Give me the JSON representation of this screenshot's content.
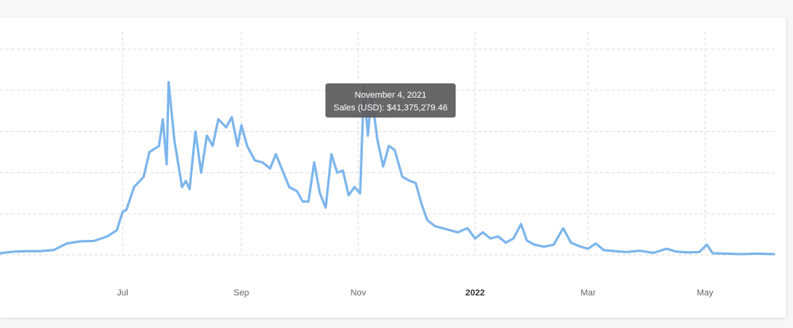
{
  "chart_data": {
    "type": "line",
    "title": "",
    "xlabel": "",
    "ylabel": "",
    "x_tick_labels": [
      {
        "label": "Jul",
        "date": "2021-07-01",
        "bold": false
      },
      {
        "label": "Sep",
        "date": "2021-09-01",
        "bold": false
      },
      {
        "label": "Nov",
        "date": "2021-11-01",
        "bold": false
      },
      {
        "label": "2022",
        "date": "2022-01-01",
        "bold": true
      },
      {
        "label": "Mar",
        "date": "2022-03-01",
        "bold": false
      },
      {
        "label": "May",
        "date": "2022-05-01",
        "bold": false
      }
    ],
    "xlim": [
      "2021-04-28",
      "2022-06-06"
    ],
    "ylim": [
      0,
      50000000
    ],
    "y_gridlines": [
      0,
      10000000,
      20000000,
      30000000,
      40000000,
      50000000
    ],
    "grid": true,
    "series": [
      {
        "color": "#7cb5ec",
        "points": [
          [
            "2021-04-28",
            400000
          ],
          [
            "2021-05-05",
            800000
          ],
          [
            "2021-05-12",
            900000
          ],
          [
            "2021-05-19",
            900000
          ],
          [
            "2021-05-26",
            1200000
          ],
          [
            "2021-06-02",
            2800000
          ],
          [
            "2021-06-09",
            3300000
          ],
          [
            "2021-06-16",
            3400000
          ],
          [
            "2021-06-23",
            4500000
          ],
          [
            "2021-06-28",
            6000000
          ],
          [
            "2021-07-01",
            10500000
          ],
          [
            "2021-07-03",
            11000000
          ],
          [
            "2021-07-07",
            16500000
          ],
          [
            "2021-07-12",
            19000000
          ],
          [
            "2021-07-15",
            25000000
          ],
          [
            "2021-07-20",
            26500000
          ],
          [
            "2021-07-22",
            33000000
          ],
          [
            "2021-07-24",
            22000000
          ],
          [
            "2021-07-25",
            42000000
          ],
          [
            "2021-07-28",
            28000000
          ],
          [
            "2021-08-01",
            16500000
          ],
          [
            "2021-08-03",
            18000000
          ],
          [
            "2021-08-05",
            16000000
          ],
          [
            "2021-08-08",
            30000000
          ],
          [
            "2021-08-11",
            20000000
          ],
          [
            "2021-08-14",
            29000000
          ],
          [
            "2021-08-17",
            26500000
          ],
          [
            "2021-08-20",
            33000000
          ],
          [
            "2021-08-24",
            31000000
          ],
          [
            "2021-08-27",
            33500000
          ],
          [
            "2021-08-30",
            26500000
          ],
          [
            "2021-09-01",
            31500000
          ],
          [
            "2021-09-04",
            26500000
          ],
          [
            "2021-09-08",
            23000000
          ],
          [
            "2021-09-12",
            22500000
          ],
          [
            "2021-09-16",
            21000000
          ],
          [
            "2021-09-19",
            24500000
          ],
          [
            "2021-09-22",
            21000000
          ],
          [
            "2021-09-26",
            16500000
          ],
          [
            "2021-09-30",
            15500000
          ],
          [
            "2021-10-03",
            13000000
          ],
          [
            "2021-10-06",
            13000000
          ],
          [
            "2021-10-09",
            22500000
          ],
          [
            "2021-10-12",
            15000000
          ],
          [
            "2021-10-15",
            11500000
          ],
          [
            "2021-10-18",
            24500000
          ],
          [
            "2021-10-21",
            20000000
          ],
          [
            "2021-10-24",
            20500000
          ],
          [
            "2021-10-27",
            14500000
          ],
          [
            "2021-10-30",
            16500000
          ],
          [
            "2021-11-02",
            15000000
          ],
          [
            "2021-11-04",
            41375279.46
          ],
          [
            "2021-11-06",
            29000000
          ],
          [
            "2021-11-08",
            39000000
          ],
          [
            "2021-11-11",
            28000000
          ],
          [
            "2021-11-14",
            21500000
          ],
          [
            "2021-11-17",
            26500000
          ],
          [
            "2021-11-20",
            25500000
          ],
          [
            "2021-11-24",
            19000000
          ],
          [
            "2021-11-28",
            18000000
          ],
          [
            "2021-12-01",
            17500000
          ],
          [
            "2021-12-04",
            12500000
          ],
          [
            "2021-12-07",
            8500000
          ],
          [
            "2021-12-11",
            7000000
          ],
          [
            "2021-12-15",
            6500000
          ],
          [
            "2021-12-19",
            6000000
          ],
          [
            "2021-12-23",
            5500000
          ],
          [
            "2021-12-28",
            6500000
          ],
          [
            "2022-01-01",
            4000000
          ],
          [
            "2022-01-05",
            5500000
          ],
          [
            "2022-01-09",
            4000000
          ],
          [
            "2022-01-13",
            4500000
          ],
          [
            "2022-01-17",
            3000000
          ],
          [
            "2022-01-21",
            4000000
          ],
          [
            "2022-01-25",
            7500000
          ],
          [
            "2022-01-28",
            3500000
          ],
          [
            "2022-02-01",
            2500000
          ],
          [
            "2022-02-06",
            2000000
          ],
          [
            "2022-02-11",
            2500000
          ],
          [
            "2022-02-16",
            6500000
          ],
          [
            "2022-02-20",
            3000000
          ],
          [
            "2022-02-25",
            2000000
          ],
          [
            "2022-03-01",
            1500000
          ],
          [
            "2022-03-05",
            2800000
          ],
          [
            "2022-03-09",
            1200000
          ],
          [
            "2022-03-15",
            900000
          ],
          [
            "2022-03-21",
            700000
          ],
          [
            "2022-03-28",
            1000000
          ],
          [
            "2022-04-04",
            500000
          ],
          [
            "2022-04-11",
            1500000
          ],
          [
            "2022-04-16",
            800000
          ],
          [
            "2022-04-22",
            600000
          ],
          [
            "2022-04-28",
            700000
          ],
          [
            "2022-05-02",
            2500000
          ],
          [
            "2022-05-05",
            400000
          ],
          [
            "2022-05-12",
            300000
          ],
          [
            "2022-05-20",
            200000
          ],
          [
            "2022-05-28",
            300000
          ],
          [
            "2022-06-06",
            200000
          ]
        ]
      }
    ],
    "tooltip": {
      "date_text": "November 4, 2021",
      "value_text": "Sales (USD): $41,375,279.46"
    }
  }
}
